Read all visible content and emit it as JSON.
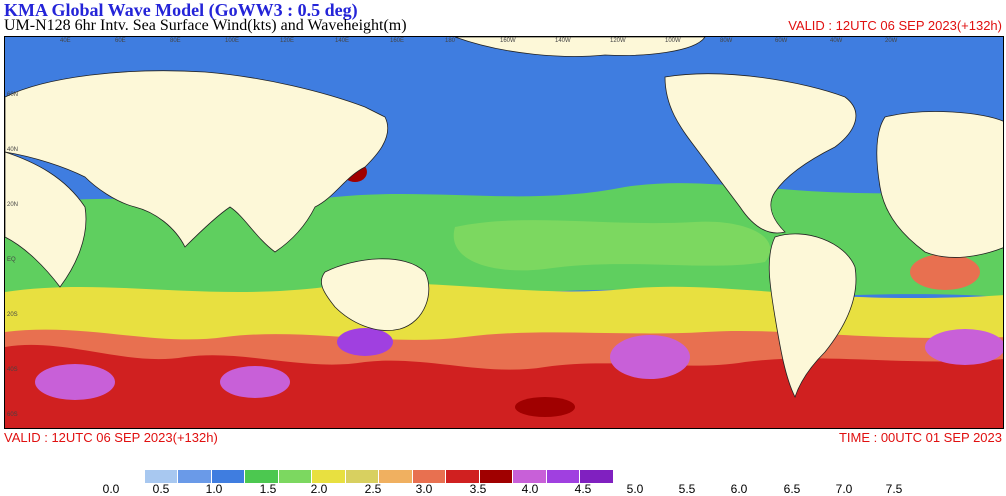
{
  "header": {
    "title": "KMA  Global Wave Model (GoWW3 : 0.5 deg)",
    "subtitle": "UM-N128  6hr Intv. Sea Surface Wind(kts) and Waveheight(m)",
    "valid_top": "VALID : 12UTC 06 SEP 2023(+132h)"
  },
  "footer": {
    "valid": "VALID : 12UTC 06 SEP 2023(+132h)",
    "time": "TIME : 00UTC 01 SEP 2023"
  },
  "map": {
    "lon_labels": [
      "40E",
      "60E",
      "80E",
      "100E",
      "120E",
      "140E",
      "160E",
      "180",
      "160W",
      "140W",
      "120W",
      "100W",
      "80W",
      "60W",
      "40W",
      "20W"
    ],
    "lat_labels": [
      "60N",
      "40N",
      "20N",
      "EQ",
      "20S",
      "40S",
      "60S"
    ],
    "colors": {
      "land": "#fdf8d8",
      "low": "#3f7de0",
      "mid": "#5fcf5f",
      "high": "#e8e040",
      "peak": "#d02020"
    }
  },
  "legend": {
    "labels": [
      "0.0",
      "0.5",
      "1.0",
      "1.5",
      "2.0",
      "2.5",
      "3.0",
      "3.5",
      "4.0",
      "4.5",
      "5.0",
      "5.5",
      "6.0",
      "6.5",
      "7.0",
      "7.5"
    ],
    "colors": [
      "#ffffff",
      "#a8c8f0",
      "#6a9ae8",
      "#3f7de0",
      "#4cc850",
      "#7cd860",
      "#e8e040",
      "#d8d060",
      "#f0b060",
      "#e87050",
      "#d02020",
      "#a00000",
      "#c860d8",
      "#a040e0",
      "#8020c0"
    ]
  }
}
